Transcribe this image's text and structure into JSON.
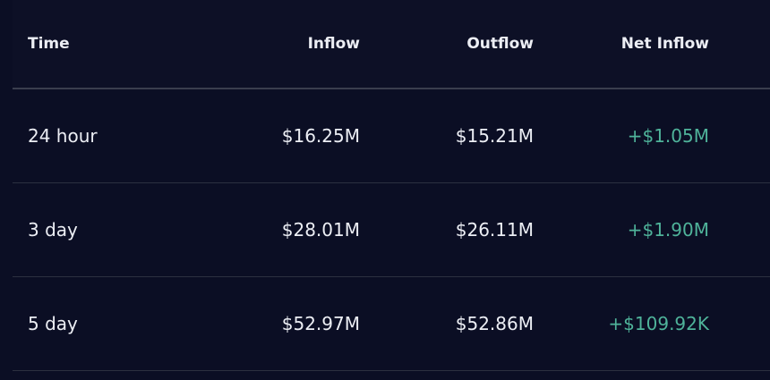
{
  "table": {
    "header": [
      "Time",
      "Inflow",
      "Outflow",
      "Net Inflow"
    ],
    "rows": [
      [
        "24 hour",
        "$16.25M",
        "$15.21M",
        "+$1.05M"
      ],
      [
        "3 day",
        "$28.01M",
        "$26.11M",
        "+$1.90M"
      ],
      [
        "5 day",
        "$52.97M",
        "$52.86M",
        "+$109.92K"
      ]
    ]
  }
}
